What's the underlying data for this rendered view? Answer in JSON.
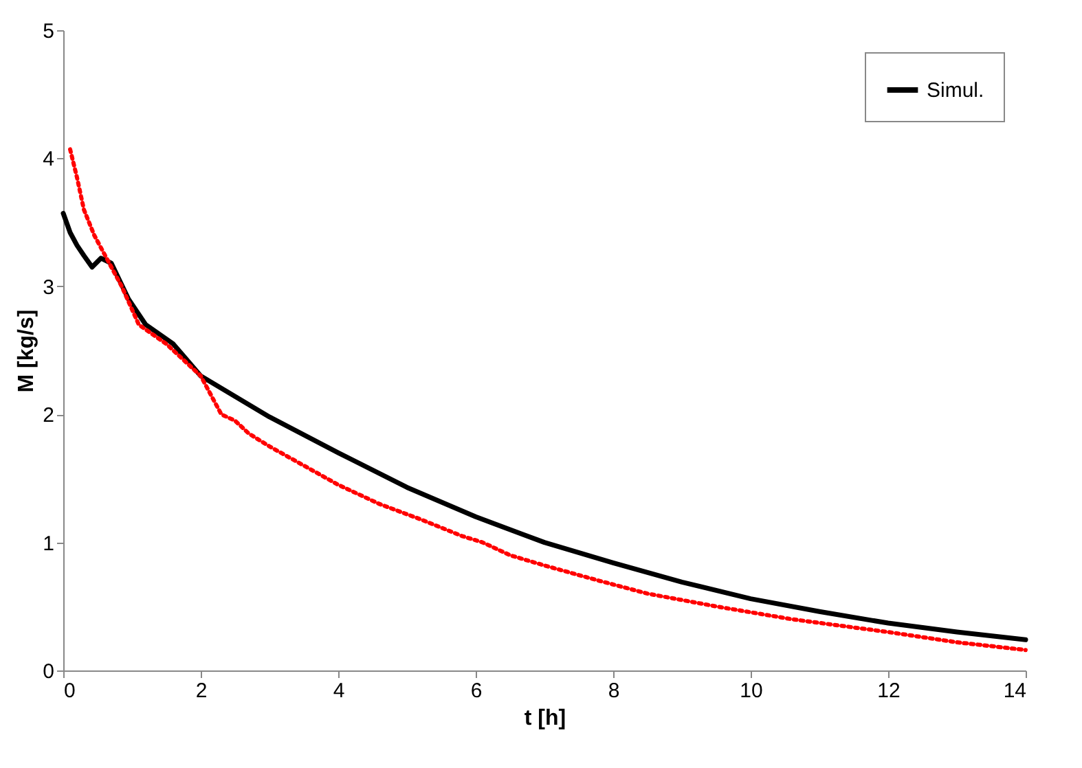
{
  "chart_data": {
    "type": "line",
    "xlabel": "t [h]",
    "ylabel": "M [kg/s]",
    "xlim": [
      0,
      14
    ],
    "ylim": [
      0,
      5
    ],
    "xticks": [
      0,
      2,
      4,
      6,
      8,
      10,
      12,
      14
    ],
    "yticks": [
      0,
      1,
      2,
      3,
      4,
      5
    ],
    "grid": false,
    "legend": "top right",
    "marker": "none",
    "series": [
      {
        "name": "Simul.",
        "color": "#000000",
        "line_style": "solid",
        "x": [
          0,
          0.1,
          0.2,
          0.3,
          0.42,
          0.55,
          0.7,
          0.95,
          1.2,
          1.6,
          2,
          3,
          4,
          5,
          6,
          7,
          8,
          9,
          10,
          11,
          12,
          13,
          14
        ],
        "values": [
          3.57,
          3.42,
          3.32,
          3.24,
          3.15,
          3.22,
          3.18,
          2.9,
          2.7,
          2.55,
          2.3,
          1.98,
          1.7,
          1.43,
          1.2,
          1.0,
          0.84,
          0.69,
          0.56,
          0.46,
          0.37,
          0.3,
          0.24
        ]
      },
      {
        "color": "#ff0000",
        "line_style": "dotted",
        "x": [
          0.1,
          0.2,
          0.3,
          0.45,
          0.6,
          0.85,
          1.1,
          1.5,
          2,
          2.3,
          2.5,
          2.7,
          3,
          3.5,
          4,
          4.6,
          5.2,
          5.8,
          6.1,
          6.5,
          7,
          7.8,
          8.5,
          9.5,
          10.6,
          12,
          13,
          14
        ],
        "values": [
          4.07,
          3.85,
          3.6,
          3.4,
          3.25,
          3.0,
          2.7,
          2.55,
          2.3,
          2.0,
          1.95,
          1.85,
          1.75,
          1.6,
          1.45,
          1.3,
          1.18,
          1.05,
          1.0,
          0.9,
          0.82,
          0.7,
          0.6,
          0.5,
          0.4,
          0.3,
          0.22,
          0.16
        ]
      }
    ]
  }
}
